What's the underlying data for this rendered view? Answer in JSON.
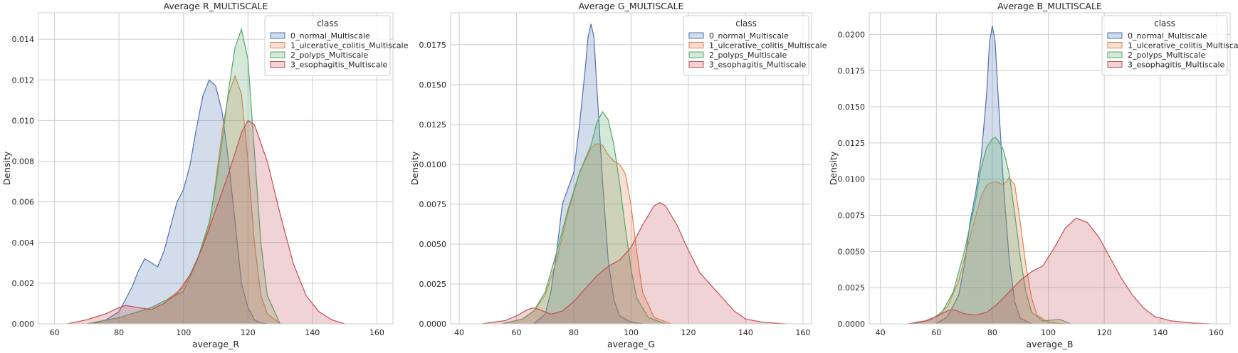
{
  "chart_data": [
    {
      "type": "area",
      "title": "Average R_MULTISCALE",
      "xlabel": "average_R",
      "ylabel": "Density",
      "xlim": [
        55,
        165
      ],
      "ylim": [
        0,
        0.0153
      ],
      "xticks": [
        60,
        80,
        100,
        120,
        140,
        160
      ],
      "xtick_labels": [
        "60",
        "80",
        "100",
        "120",
        "140",
        "160"
      ],
      "yticks": [
        0,
        0.002,
        0.004,
        0.006,
        0.008,
        0.01,
        0.012,
        0.014
      ],
      "ytick_labels": [
        "0.000",
        "0.002",
        "0.004",
        "0.006",
        "0.008",
        "0.010",
        "0.012",
        "0.014"
      ],
      "grid": true,
      "legend": {
        "title": "class",
        "position": "top-right"
      },
      "series": [
        {
          "name": "0_normal_Multiscale",
          "color": "#4c72b0",
          "x": [
            72,
            76,
            80,
            84,
            86,
            88,
            90,
            92,
            94,
            96,
            98,
            100,
            102,
            104,
            106,
            108,
            110,
            112,
            114,
            116,
            118,
            120,
            122,
            124,
            126
          ],
          "y": [
            0,
            0.0002,
            0.0006,
            0.0018,
            0.0026,
            0.0032,
            0.003,
            0.0028,
            0.0036,
            0.0048,
            0.006,
            0.0066,
            0.0078,
            0.0096,
            0.0112,
            0.012,
            0.0117,
            0.0104,
            0.008,
            0.005,
            0.002,
            0.0008,
            0.0002,
            5e-05,
            0
          ]
        },
        {
          "name": "1_ulcerative_colitis_Multiscale",
          "color": "#dd8452",
          "x": [
            70,
            80,
            90,
            95,
            100,
            104,
            108,
            110,
            112,
            114,
            116,
            118,
            120,
            122,
            124,
            126,
            130
          ],
          "y": [
            0,
            0.0003,
            0.0008,
            0.0012,
            0.0018,
            0.003,
            0.0048,
            0.007,
            0.0095,
            0.0113,
            0.0122,
            0.0113,
            0.008,
            0.004,
            0.0014,
            0.0005,
            0
          ]
        },
        {
          "name": "2_polyps_Multiscale",
          "color": "#55a868",
          "x": [
            70,
            80,
            90,
            100,
            104,
            108,
            110,
            112,
            114,
            116,
            118,
            120,
            122,
            124,
            126,
            130
          ],
          "y": [
            0,
            0.0003,
            0.0008,
            0.0016,
            0.003,
            0.005,
            0.0068,
            0.009,
            0.0115,
            0.0136,
            0.0145,
            0.013,
            0.0085,
            0.004,
            0.0014,
            0
          ]
        },
        {
          "name": "3_esophagitis_Multiscale",
          "color": "#c44e52",
          "x": [
            64,
            70,
            76,
            80,
            82,
            86,
            90,
            94,
            98,
            102,
            106,
            110,
            114,
            118,
            120,
            122,
            126,
            130,
            134,
            138,
            142,
            146,
            150
          ],
          "y": [
            0,
            0.0002,
            0.0005,
            0.0008,
            0.0009,
            0.0008,
            0.0007,
            0.001,
            0.0015,
            0.0024,
            0.0038,
            0.0056,
            0.0074,
            0.0094,
            0.01,
            0.0098,
            0.008,
            0.0054,
            0.003,
            0.0014,
            0.0006,
            0.0002,
            0
          ]
        }
      ]
    },
    {
      "type": "area",
      "title": "Average G_MULTISCALE",
      "xlabel": "average_G",
      "ylabel": "Density",
      "xlim": [
        37,
        163
      ],
      "ylim": [
        0,
        0.0195
      ],
      "xticks": [
        40,
        60,
        80,
        100,
        120,
        140,
        160
      ],
      "xtick_labels": [
        "40",
        "60",
        "80",
        "100",
        "120",
        "140",
        "160"
      ],
      "yticks": [
        0,
        0.0025,
        0.005,
        0.0075,
        0.01,
        0.0125,
        0.015,
        0.0175
      ],
      "ytick_labels": [
        "0.0000",
        "0.0025",
        "0.0050",
        "0.0075",
        "0.0100",
        "0.0125",
        "0.0150",
        "0.0175"
      ],
      "grid": true,
      "legend": {
        "title": "class",
        "position": "top-right"
      },
      "series": [
        {
          "name": "0_normal_Multiscale",
          "color": "#4c72b0",
          "x": [
            66,
            70,
            72,
            74,
            76,
            78,
            80,
            82,
            84,
            85,
            86,
            87,
            88,
            90,
            92,
            94,
            96,
            100,
            104
          ],
          "y": [
            0,
            0.0006,
            0.002,
            0.0045,
            0.0075,
            0.0085,
            0.0095,
            0.0125,
            0.016,
            0.018,
            0.0188,
            0.018,
            0.015,
            0.009,
            0.004,
            0.0015,
            0.0005,
            0.0001,
            0
          ]
        },
        {
          "name": "1_ulcerative_colitis_Multiscale",
          "color": "#dd8452",
          "x": [
            55,
            62,
            66,
            70,
            74,
            78,
            82,
            86,
            88,
            90,
            92,
            94,
            96,
            98,
            100,
            102,
            104,
            108,
            114
          ],
          "y": [
            0,
            0.0003,
            0.0008,
            0.0018,
            0.004,
            0.007,
            0.0095,
            0.011,
            0.0113,
            0.0112,
            0.0106,
            0.0102,
            0.01,
            0.0094,
            0.0074,
            0.0045,
            0.002,
            0.0004,
            0
          ]
        },
        {
          "name": "2_polyps_Multiscale",
          "color": "#55a868",
          "x": [
            55,
            62,
            66,
            70,
            74,
            78,
            82,
            86,
            88,
            90,
            92,
            94,
            96,
            98,
            100,
            102,
            106,
            112
          ],
          "y": [
            0,
            0.0003,
            0.0008,
            0.002,
            0.0045,
            0.0072,
            0.0095,
            0.0112,
            0.0126,
            0.0133,
            0.0128,
            0.0112,
            0.0088,
            0.006,
            0.0034,
            0.0016,
            0.0004,
            0
          ]
        },
        {
          "name": "3_esophagitis_Multiscale",
          "color": "#c44e52",
          "x": [
            48,
            56,
            60,
            64,
            66,
            68,
            72,
            76,
            80,
            84,
            88,
            92,
            96,
            100,
            104,
            108,
            110,
            112,
            116,
            120,
            124,
            128,
            132,
            136,
            140,
            146,
            154
          ],
          "y": [
            0,
            0.0002,
            0.0005,
            0.0009,
            0.001,
            0.0009,
            0.0006,
            0.0008,
            0.0014,
            0.0022,
            0.003,
            0.0036,
            0.004,
            0.0048,
            0.0062,
            0.0074,
            0.0076,
            0.0074,
            0.0062,
            0.0046,
            0.0032,
            0.0024,
            0.0016,
            0.0008,
            0.0003,
            0.0001,
            0
          ]
        }
      ]
    },
    {
      "type": "area",
      "title": "Average B_MULTISCALE",
      "xlabel": "average_B",
      "ylabel": "Density",
      "xlim": [
        36,
        165
      ],
      "ylim": [
        0,
        0.0215
      ],
      "xticks": [
        40,
        60,
        80,
        100,
        120,
        140,
        160
      ],
      "xtick_labels": [
        "40",
        "60",
        "80",
        "100",
        "120",
        "140",
        "160"
      ],
      "yticks": [
        0,
        0.0025,
        0.005,
        0.0075,
        0.01,
        0.0125,
        0.015,
        0.0175,
        0.02
      ],
      "ytick_labels": [
        "0.0000",
        "0.0025",
        "0.0050",
        "0.0075",
        "0.0100",
        "0.0125",
        "0.0150",
        "0.0175",
        "0.0200"
      ],
      "grid": true,
      "legend": {
        "title": "class",
        "position": "top-right"
      },
      "series": [
        {
          "name": "0_normal_Multiscale",
          "color": "#4c72b0",
          "x": [
            60,
            64,
            68,
            70,
            72,
            74,
            76,
            78,
            79,
            80,
            81,
            82,
            84,
            86,
            88,
            90,
            94
          ],
          "y": [
            0,
            0.0005,
            0.002,
            0.004,
            0.007,
            0.009,
            0.0115,
            0.016,
            0.0195,
            0.0206,
            0.0195,
            0.016,
            0.0095,
            0.0045,
            0.0015,
            0.0004,
            0
          ]
        },
        {
          "name": "1_ulcerative_colitis_Multiscale",
          "color": "#dd8452",
          "x": [
            50,
            56,
            60,
            64,
            68,
            72,
            76,
            78,
            80,
            82,
            84,
            86,
            88,
            90,
            92,
            94,
            96,
            100,
            106
          ],
          "y": [
            0,
            0.0002,
            0.0005,
            0.0012,
            0.003,
            0.006,
            0.0088,
            0.0096,
            0.0098,
            0.0098,
            0.0096,
            0.0101,
            0.0096,
            0.007,
            0.004,
            0.0018,
            0.0006,
            0.0001,
            0
          ]
        },
        {
          "name": "2_polyps_Multiscale",
          "color": "#55a868",
          "x": [
            52,
            58,
            62,
            66,
            70,
            74,
            76,
            78,
            80,
            81,
            82,
            84,
            86,
            88,
            90,
            92,
            94,
            98,
            104,
            108
          ],
          "y": [
            0,
            0.0003,
            0.0008,
            0.0022,
            0.005,
            0.0085,
            0.0108,
            0.0122,
            0.0128,
            0.0129,
            0.0127,
            0.012,
            0.0104,
            0.0076,
            0.0046,
            0.0022,
            0.0008,
            0.0002,
            0.0003,
            0
          ]
        },
        {
          "name": "3_esophagitis_Multiscale",
          "color": "#c44e52",
          "x": [
            50,
            56,
            60,
            64,
            66,
            70,
            74,
            78,
            82,
            86,
            90,
            94,
            98,
            102,
            106,
            110,
            114,
            118,
            122,
            126,
            130,
            134,
            138,
            144,
            152,
            158
          ],
          "y": [
            0,
            0.0002,
            0.0005,
            0.0009,
            0.001,
            0.0007,
            0.0006,
            0.0008,
            0.0014,
            0.0022,
            0.003,
            0.0036,
            0.004,
            0.0052,
            0.0066,
            0.0073,
            0.007,
            0.006,
            0.0046,
            0.0032,
            0.002,
            0.0011,
            0.0005,
            0.0002,
            5e-05,
            0
          ]
        }
      ]
    }
  ]
}
